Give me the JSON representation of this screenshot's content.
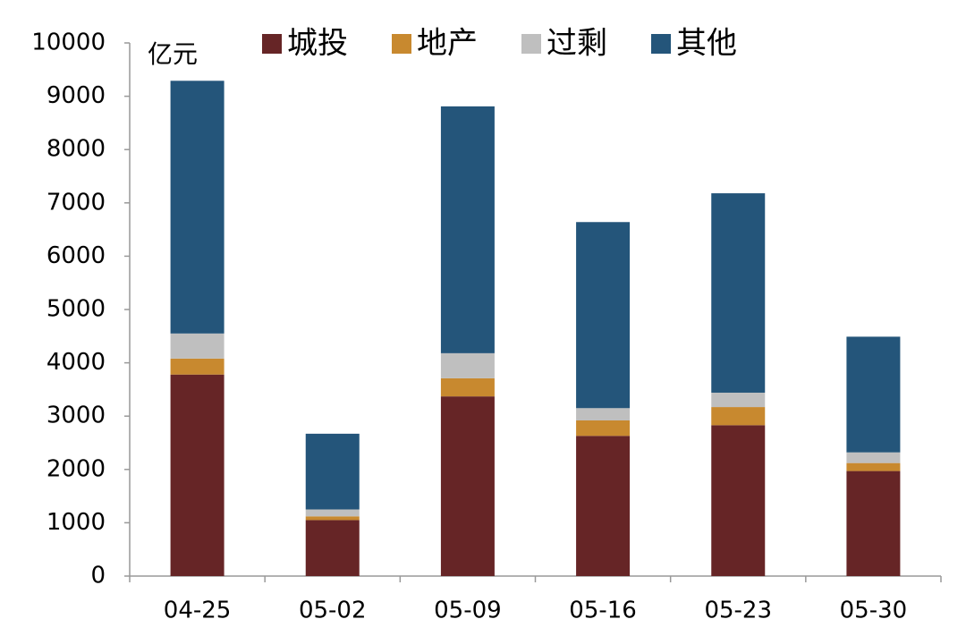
{
  "chart_data": {
    "type": "stacked_bar",
    "y_label": "亿元",
    "categories": [
      "04-25",
      "05-02",
      "05-09",
      "05-16",
      "05-23",
      "05-30"
    ],
    "series": [
      {
        "name": "城投",
        "color": "#662526",
        "values": [
          3780,
          1050,
          3370,
          2630,
          2830,
          1970
        ]
      },
      {
        "name": "地产",
        "color": "#c8892f",
        "values": [
          300,
          70,
          340,
          290,
          340,
          150
        ]
      },
      {
        "name": "过剩",
        "color": "#bfbfbf",
        "values": [
          470,
          130,
          470,
          230,
          270,
          200
        ]
      },
      {
        "name": "其他",
        "color": "#24557a",
        "values": [
          4740,
          1420,
          4630,
          3490,
          3740,
          2170
        ]
      }
    ],
    "ylim": [
      0,
      10000
    ],
    "yticks": [
      0,
      1000,
      2000,
      3000,
      4000,
      5000,
      6000,
      7000,
      8000,
      9000,
      10000
    ],
    "grid": false
  }
}
